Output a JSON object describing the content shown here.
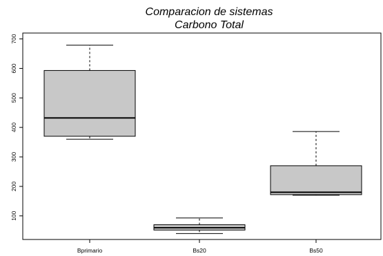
{
  "chart_data": {
    "type": "boxplot",
    "title": "Comparacion de sistemas",
    "subtitle": "Carbono Total",
    "xlabel": "",
    "ylabel": "",
    "ylim": [
      20,
      720
    ],
    "yticks": [
      100,
      200,
      300,
      400,
      500,
      600,
      700
    ],
    "grid": false,
    "box_fill": "#c8c8c8",
    "categories": [
      "Bprimario",
      "Bs20",
      "Bs50"
    ],
    "boxes": [
      {
        "name": "Bprimario",
        "min": 360,
        "q1": 370,
        "median": 432,
        "q3": 593,
        "max": 679
      },
      {
        "name": "Bs20",
        "min": 40,
        "q1": 52,
        "median": 60,
        "q3": 70,
        "max": 93
      },
      {
        "name": "Bs50",
        "min": 170,
        "q1": 172,
        "median": 180,
        "q3": 270,
        "max": 386
      }
    ]
  }
}
